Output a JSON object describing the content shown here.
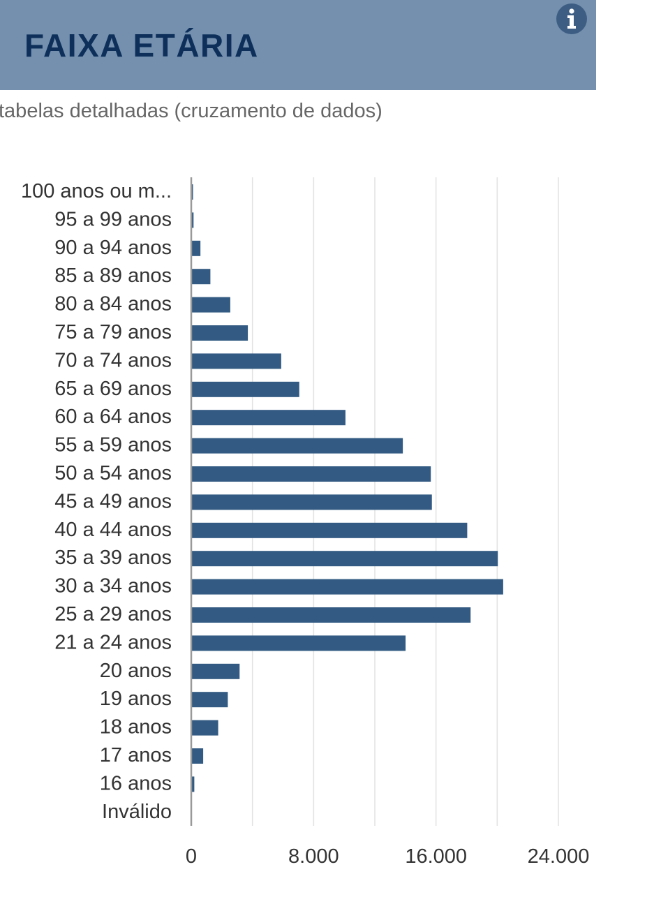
{
  "header": {
    "title": "FAIXA ETÁRIA",
    "info_icon": "info-icon",
    "subtitle": "tabelas detalhadas (cruzamento de dados)"
  },
  "colors": {
    "header_bg": "#7490ae",
    "title": "#0d2f5a",
    "bar": "#325a82",
    "grid": "#e2e2e2",
    "axis": "#999999",
    "label": "#333333"
  },
  "chart_data": {
    "type": "bar",
    "orientation": "horizontal",
    "categories": [
      "100 anos ou m...",
      "95 a 99 anos",
      "90 a 94 anos",
      "85 a 89 anos",
      "80 a 84 anos",
      "75 a 79 anos",
      "70 a 74 anos",
      "65 a 69 anos",
      "60 a 64 anos",
      "55 a 59 anos",
      "50 a 54 anos",
      "45 a 49 anos",
      "40 a 44 anos",
      "35 a 39 anos",
      "30 a 34 anos",
      "25 a 29 anos",
      "21 a 24 anos",
      "20 anos",
      "19 anos",
      "18 anos",
      "17 anos",
      "16 anos",
      "Inválido"
    ],
    "values": [
      30,
      150,
      600,
      1250,
      2550,
      3700,
      5880,
      7060,
      10080,
      13830,
      15660,
      15730,
      18040,
      20040,
      20390,
      18260,
      14010,
      3160,
      2390,
      1760,
      780,
      200,
      0
    ],
    "xlim": [
      0,
      24000
    ],
    "xticks": [
      0,
      8000,
      16000,
      24000
    ],
    "xtick_labels": [
      "0",
      "8.000",
      "16.000",
      "24.000"
    ],
    "gridlines": [
      0,
      4000,
      8000,
      12000,
      16000,
      20000,
      24000
    ],
    "grid": true,
    "legend": "none"
  }
}
